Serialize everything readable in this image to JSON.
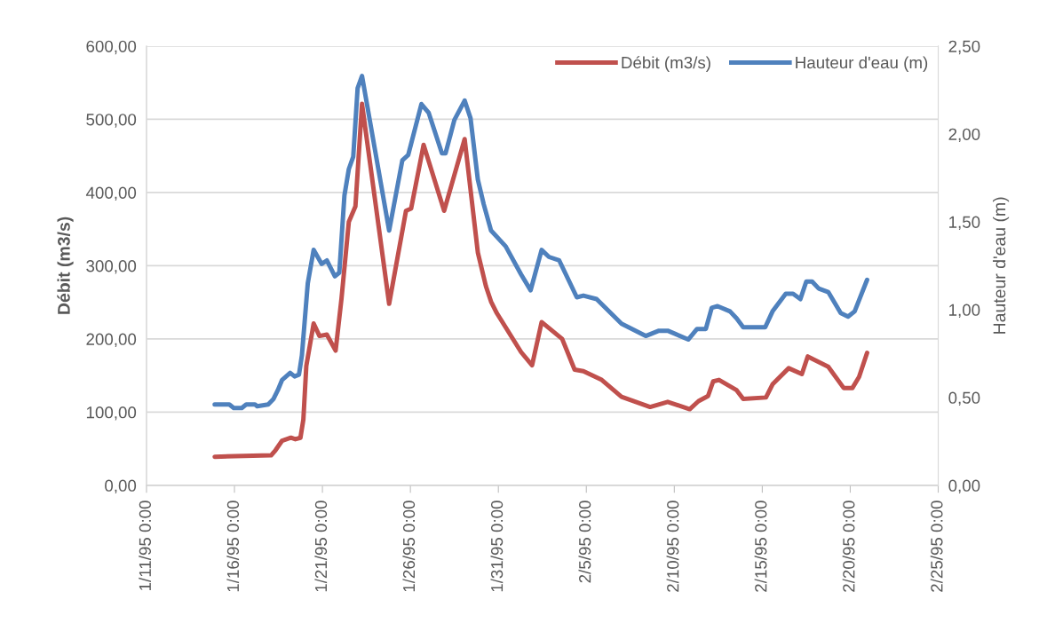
{
  "chart_data": {
    "type": "line",
    "ylabel": "Débit (m3/s)",
    "y2label": "Hauteur d'eau (m)",
    "grid": "y",
    "legend": "top right",
    "marker": "none",
    "line_style": "solid",
    "xlim": [
      "1995-01-11",
      "1995-02-25"
    ],
    "xticks": [
      {
        "value": "1995-01-11",
        "label": "1/11/95 0:00"
      },
      {
        "value": "1995-01-16",
        "label": "1/16/95 0:00"
      },
      {
        "value": "1995-01-21",
        "label": "1/21/95 0:00"
      },
      {
        "value": "1995-01-26",
        "label": "1/26/95 0:00"
      },
      {
        "value": "1995-01-31",
        "label": "1/31/95 0:00"
      },
      {
        "value": "1995-02-05",
        "label": "2/5/95 0:00"
      },
      {
        "value": "1995-02-10",
        "label": "2/10/95 0:00"
      },
      {
        "value": "1995-02-15",
        "label": "2/15/95 0:00"
      },
      {
        "value": "1995-02-20",
        "label": "2/20/95 0:00"
      },
      {
        "value": "1995-02-25",
        "label": "2/25/95 0:00"
      }
    ],
    "ylim": [
      0,
      600
    ],
    "yticks": [
      {
        "value": 0,
        "label": "0,00"
      },
      {
        "value": 100,
        "label": "100,00"
      },
      {
        "value": 200,
        "label": "200,00"
      },
      {
        "value": 300,
        "label": "300,00"
      },
      {
        "value": 400,
        "label": "400,00"
      },
      {
        "value": 500,
        "label": "500,00"
      },
      {
        "value": 600,
        "label": "600,00"
      }
    ],
    "y2lim": [
      0,
      2.5
    ],
    "y2ticks": [
      {
        "value": 0,
        "label": "0,00"
      },
      {
        "value": 0.5,
        "label": "0,50"
      },
      {
        "value": 1,
        "label": "1,00"
      },
      {
        "value": 1.5,
        "label": "1,50"
      },
      {
        "value": 2,
        "label": "2,00"
      },
      {
        "value": 2.5,
        "label": "2,50"
      }
    ],
    "series": [
      {
        "name": "Débit (m3/s)",
        "color": "#c0504d",
        "x": [
          "1995-01-14T21:00",
          "1995-01-18T02:00",
          "1995-01-18T08:00",
          "1995-01-18T17:00",
          "1995-01-19T05:00",
          "1995-01-19T11:00",
          "1995-01-19T18:00",
          "1995-01-19T22:00",
          "1995-01-20T02:00",
          "1995-01-20T12:00",
          "1995-01-20T20:00",
          "1995-01-21T06:00",
          "1995-01-21T18:00",
          "1995-01-22T02:00",
          "1995-01-22T12:00",
          "1995-01-22T21:00",
          "1995-01-23T06:00",
          "1995-01-24T19:00",
          "1995-01-25T18:00",
          "1995-01-26T01:00",
          "1995-01-26T18:00",
          "1995-01-27T22:00",
          "1995-01-29T02:00",
          "1995-01-29T20:00",
          "1995-01-30T07:00",
          "1995-01-30T14:00",
          "1995-01-30T22:00",
          "1995-02-01T07:00",
          "1995-02-01T22:00",
          "1995-02-02T11:00",
          "1995-02-03T15:00",
          "1995-02-04T08:00",
          "1995-02-04T20:00",
          "1995-02-05T21:00",
          "1995-02-07T00:00",
          "1995-02-08T15:00",
          "1995-02-09T15:00",
          "1995-02-10T21:00",
          "1995-02-11T09:00",
          "1995-02-11T22:00",
          "1995-02-12T05:00",
          "1995-02-12T13:00",
          "1995-02-13T13:00",
          "1995-02-13T22:00",
          "1995-02-15T05:00",
          "1995-02-15T14:00",
          "1995-02-16T12:00",
          "1995-02-17T06:00",
          "1995-02-17T14:00",
          "1995-02-18T18:00",
          "1995-02-19T15:00",
          "1995-02-20T03:00",
          "1995-02-20T12:00",
          "1995-02-20T23:00"
        ],
        "values": [
          39,
          41,
          48,
          61,
          65,
          63,
          65,
          90,
          163,
          221,
          204,
          206,
          184,
          255,
          360,
          381,
          521,
          248,
          375,
          378,
          465,
          375,
          473,
          318,
          272,
          251,
          235,
          182,
          164,
          223,
          200,
          158,
          156,
          144,
          121,
          107,
          114,
          104,
          115,
          122,
          142,
          144,
          130,
          118,
          120,
          138,
          160,
          152,
          176,
          162,
          133,
          133,
          148,
          181
        ]
      },
      {
        "name": "Hauteur d'eau (m)",
        "color": "#4f81bd",
        "axis": "y2",
        "x": [
          "1995-01-14T21:00",
          "1995-01-15T17:00",
          "1995-01-15T23:00",
          "1995-01-16T10:00",
          "1995-01-16T16:00",
          "1995-01-17T04:00",
          "1995-01-17T07:00",
          "1995-01-17T22:00",
          "1995-01-18T05:00",
          "1995-01-18T11:00",
          "1995-01-18T17:00",
          "1995-01-19T04:00",
          "1995-01-19T10:00",
          "1995-01-19T16:00",
          "1995-01-19T20:00",
          "1995-01-20T04:00",
          "1995-01-20T12:00",
          "1995-01-20T23:00",
          "1995-01-21T06:00",
          "1995-01-21T17:00",
          "1995-01-21T23:00",
          "1995-01-22T06:00",
          "1995-01-22T12:00",
          "1995-01-22T18:00",
          "1995-01-23T00:00",
          "1995-01-23T06:00",
          "1995-01-24T19:00",
          "1995-01-25T13:00",
          "1995-01-25T21:00",
          "1995-01-26T15:00",
          "1995-01-27T01:00",
          "1995-01-27T19:00",
          "1995-01-28T00:00",
          "1995-01-28T12:00",
          "1995-01-29T02:00",
          "1995-01-29T10:00",
          "1995-01-29T20:00",
          "1995-01-30T04:00",
          "1995-01-30T14:00",
          "1995-01-31T10:00",
          "1995-02-01T07:00",
          "1995-02-01T20:00",
          "1995-02-02T11:00",
          "1995-02-02T21:00",
          "1995-02-03T11:00",
          "1995-02-04T11:00",
          "1995-02-04T20:00",
          "1995-02-05T14:00",
          "1995-02-07T00:00",
          "1995-02-08T09:00",
          "1995-02-09T03:00",
          "1995-02-09T15:00",
          "1995-02-10T19:00",
          "1995-02-11T07:00",
          "1995-02-11T19:00",
          "1995-02-12T03:00",
          "1995-02-12T11:00",
          "1995-02-13T04:00",
          "1995-02-13T13:00",
          "1995-02-13T22:00",
          "1995-02-15T04:00",
          "1995-02-15T14:00",
          "1995-02-16T08:00",
          "1995-02-16T18:00",
          "1995-02-17T04:00",
          "1995-02-17T12:00",
          "1995-02-17T20:00",
          "1995-02-18T05:00",
          "1995-02-18T18:00",
          "1995-02-19T11:00",
          "1995-02-19T21:00",
          "1995-02-20T06:00",
          "1995-02-20T23:00"
        ],
        "values": [
          0.46,
          0.46,
          0.44,
          0.44,
          0.46,
          0.46,
          0.45,
          0.46,
          0.49,
          0.54,
          0.6,
          0.64,
          0.62,
          0.63,
          0.74,
          1.15,
          1.34,
          1.26,
          1.28,
          1.19,
          1.21,
          1.65,
          1.8,
          1.87,
          2.26,
          2.33,
          1.45,
          1.85,
          1.88,
          2.17,
          2.12,
          1.89,
          1.89,
          2.08,
          2.19,
          2.09,
          1.74,
          1.6,
          1.45,
          1.36,
          1.2,
          1.11,
          1.34,
          1.3,
          1.28,
          1.07,
          1.08,
          1.06,
          0.92,
          0.85,
          0.88,
          0.88,
          0.83,
          0.89,
          0.89,
          1.01,
          1.02,
          0.99,
          0.95,
          0.9,
          0.9,
          0.99,
          1.09,
          1.09,
          1.06,
          1.16,
          1.16,
          1.12,
          1.1,
          0.98,
          0.96,
          0.99,
          1.17
        ]
      }
    ]
  }
}
